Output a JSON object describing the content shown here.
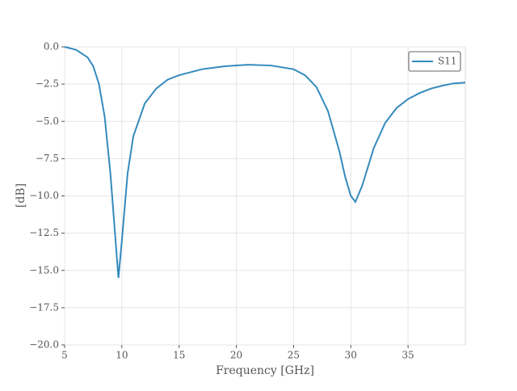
{
  "chart_data": {
    "type": "line",
    "xlabel": "Frequency [GHz]",
    "ylabel": "[dB]",
    "x": [
      5,
      6,
      7,
      7.5,
      8,
      8.5,
      9,
      9.5,
      9.7,
      10,
      10.5,
      11,
      12,
      13,
      14,
      15,
      17,
      19,
      21,
      23,
      25,
      26,
      27,
      28,
      29,
      29.5,
      30,
      30.4,
      31,
      32,
      33,
      34,
      35,
      36,
      37,
      38,
      39,
      40
    ],
    "series": [
      {
        "name": "S11",
        "color": "#348abd",
        "values": [
          0,
          -0.2,
          -0.7,
          -1.3,
          -2.5,
          -4.7,
          -8.5,
          -13.5,
          -15.5,
          -13,
          -8.5,
          -6,
          -3.8,
          -2.8,
          -2.2,
          -1.9,
          -1.5,
          -1.3,
          -1.2,
          -1.25,
          -1.5,
          -1.9,
          -2.7,
          -4.3,
          -7,
          -8.7,
          -10,
          -10.4,
          -9.3,
          -6.8,
          -5.1,
          -4.1,
          -3.5,
          -3.1,
          -2.8,
          -2.6,
          -2.45,
          -2.4
        ]
      }
    ],
    "xlim": [
      5,
      40
    ],
    "xticks": [
      5,
      10,
      15,
      20,
      25,
      30,
      35
    ],
    "ylim": [
      -20,
      0
    ],
    "yticks": [
      {
        "value": -20,
        "label": "−20.0"
      },
      {
        "value": -17.5,
        "label": "−17.5"
      },
      {
        "value": -15,
        "label": "−15.0"
      },
      {
        "value": -12.5,
        "label": "−12.5"
      },
      {
        "value": -10,
        "label": "−10.0"
      },
      {
        "value": -7.5,
        "label": "−7.5"
      },
      {
        "value": -5,
        "label": "−5.0"
      },
      {
        "value": -2.5,
        "label": "−2.5"
      },
      {
        "value": 0,
        "label": "0.0"
      }
    ],
    "grid": true,
    "legend": "upper right"
  }
}
